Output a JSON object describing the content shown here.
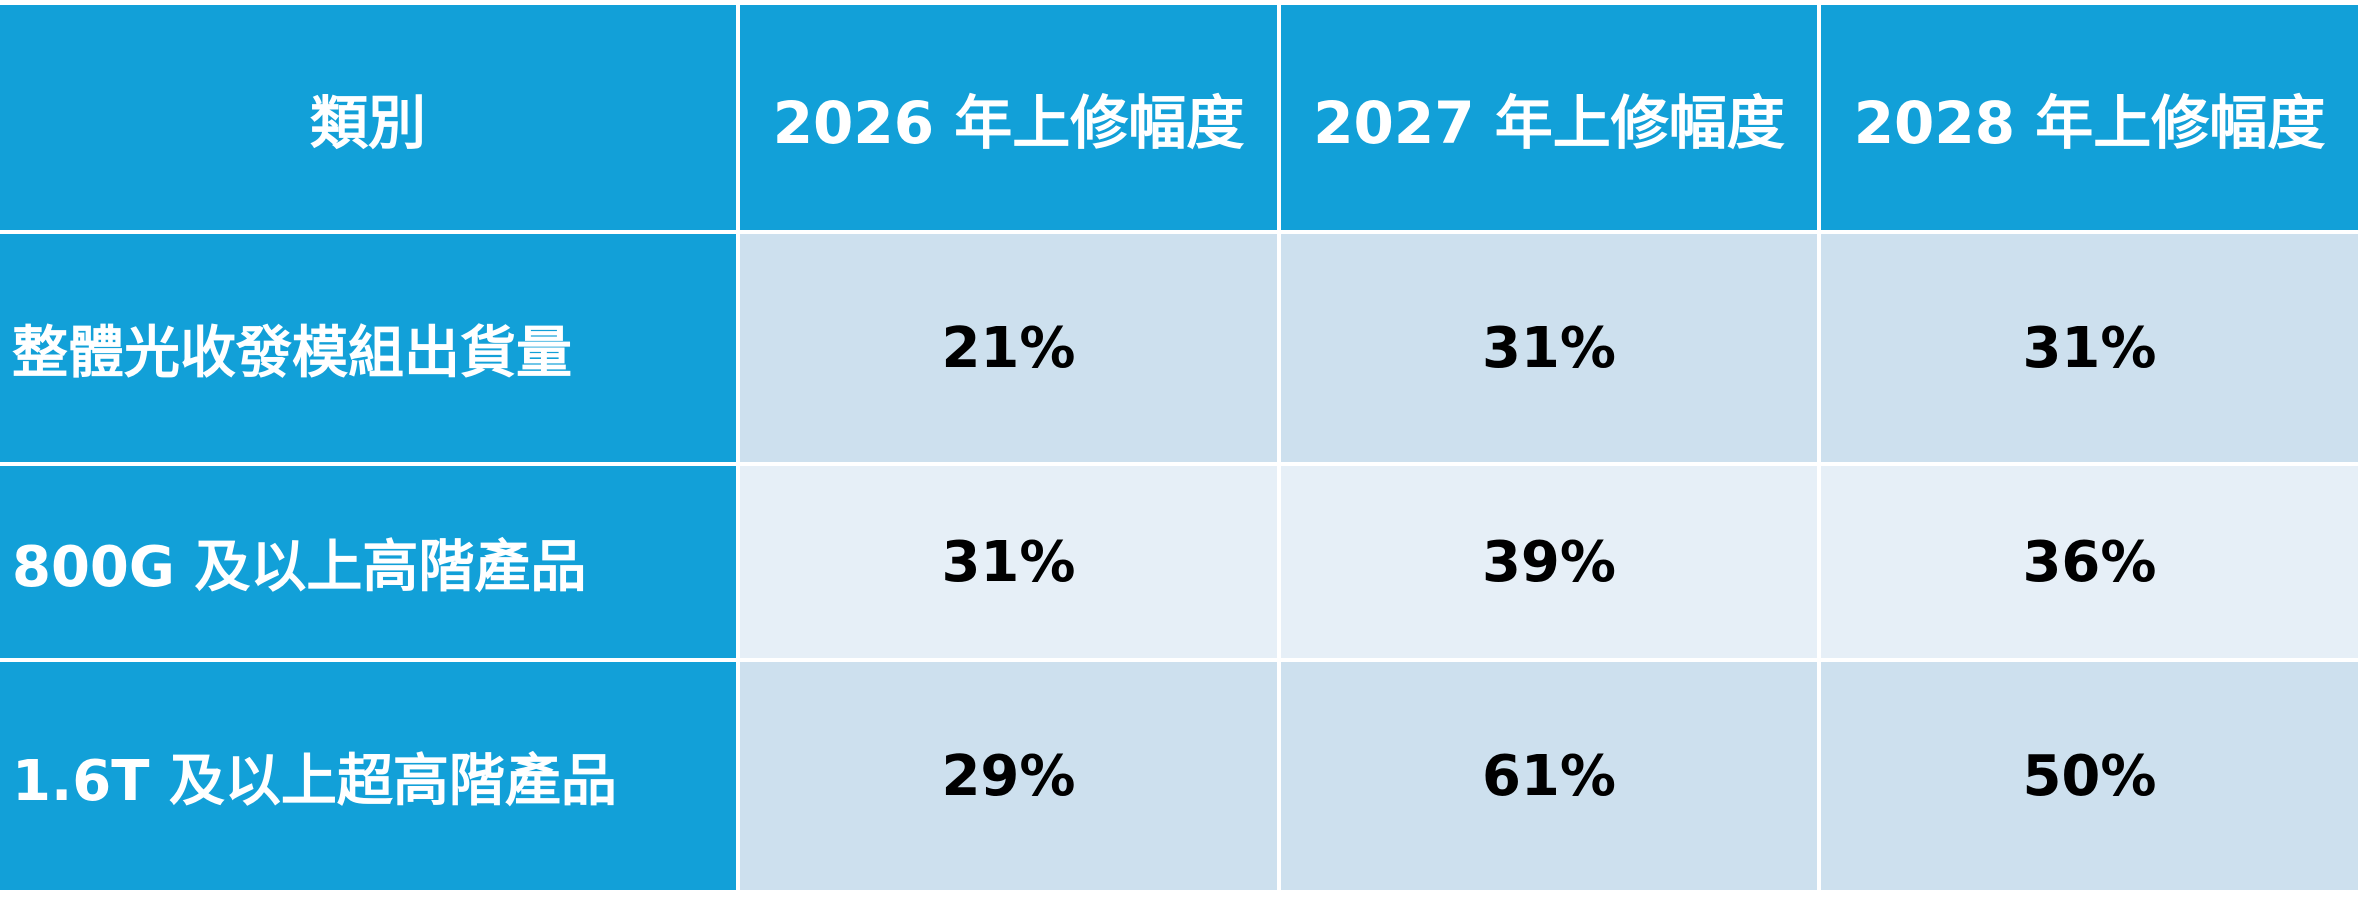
{
  "table": {
    "header": [
      "類別",
      "2026 年上修幅度",
      "2027 年上修幅度",
      "2028 年上修幅度"
    ],
    "rows": [
      [
        "整體光收發模組出貨量",
        "21%",
        "31%",
        "31%"
      ],
      [
        "800G 及以上高階產品",
        "31%",
        "39%",
        "36%"
      ],
      [
        "1.6T 及以上超高階產品",
        "29%",
        "61%",
        "50%"
      ]
    ]
  }
}
